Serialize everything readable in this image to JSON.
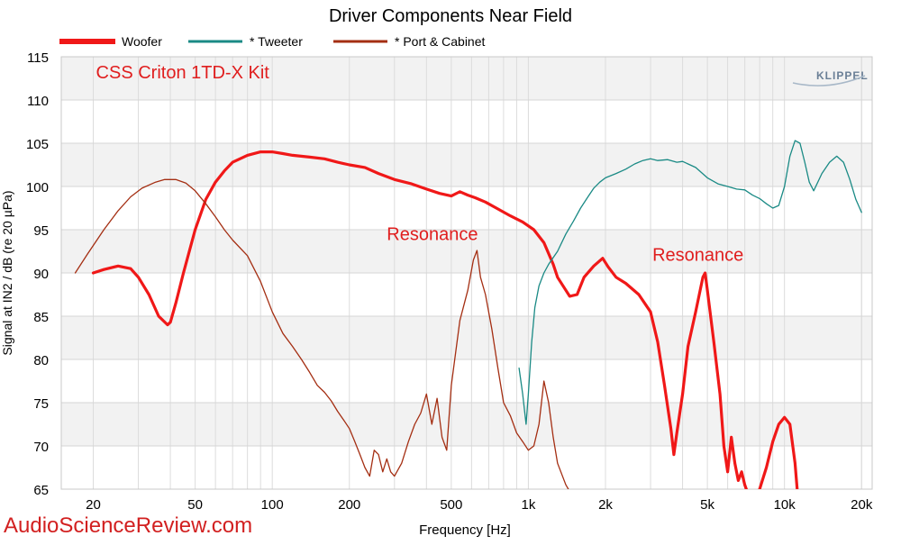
{
  "chart_data": {
    "type": "line",
    "title": "Driver Components Near Field",
    "xlabel": "Frequency [Hz]",
    "ylabel": "Signal at IN2 / dB (re 20 µPa)",
    "x_scale": "log",
    "xlim": [
      15,
      22000
    ],
    "ylim": [
      65,
      115
    ],
    "y_ticks": [
      65,
      70,
      75,
      80,
      85,
      90,
      95,
      100,
      105,
      110,
      115
    ],
    "x_ticks": [
      {
        "value": 20,
        "label": "20"
      },
      {
        "value": 50,
        "label": "50"
      },
      {
        "value": 100,
        "label": "100"
      },
      {
        "value": 200,
        "label": "200"
      },
      {
        "value": 500,
        "label": "500"
      },
      {
        "value": 1000,
        "label": "1k"
      },
      {
        "value": 2000,
        "label": "2k"
      },
      {
        "value": 5000,
        "label": "5k"
      },
      {
        "value": 10000,
        "label": "10k"
      },
      {
        "value": 20000,
        "label": "20k"
      }
    ],
    "grid": true,
    "legend_position": "top-left",
    "annotations": [
      {
        "text": "CSS Criton 1TD-X Kit",
        "x": 20.5,
        "y": 112.5
      },
      {
        "text": "Resonance",
        "x": 280,
        "y": 93.8
      },
      {
        "text": "Resonance",
        "x": 3050,
        "y": 91.4
      }
    ],
    "logo_text": "KLIPPEL",
    "watermark": "AudioScienceReview.com",
    "series": [
      {
        "name": "Woofer",
        "color": "#f01818",
        "x": [
          20,
          22,
          25,
          28,
          30,
          33,
          36,
          39,
          40,
          42,
          45,
          50,
          55,
          60,
          65,
          70,
          80,
          90,
          100,
          110,
          120,
          140,
          160,
          180,
          200,
          230,
          260,
          300,
          350,
          400,
          450,
          500,
          540,
          580,
          620,
          680,
          750,
          850,
          950,
          1050,
          1150,
          1250,
          1300,
          1400,
          1450,
          1550,
          1650,
          1800,
          1950,
          2050,
          2200,
          2400,
          2700,
          3000,
          3200,
          3400,
          3600,
          3700,
          3800,
          4000,
          4200,
          4500,
          4800,
          4900,
          5000,
          5300,
          5600,
          5800,
          6000,
          6200,
          6400,
          6600,
          6800,
          7000,
          7500,
          8000,
          8500,
          9000,
          9500,
          10000,
          10500,
          11000,
          11500
        ],
        "y": [
          90,
          90.4,
          90.8,
          90.5,
          89.5,
          87.5,
          85,
          84,
          84.3,
          86.5,
          90,
          95,
          98.5,
          100.5,
          101.8,
          102.8,
          103.6,
          104,
          104,
          103.8,
          103.6,
          103.4,
          103.2,
          102.8,
          102.5,
          102.2,
          101.5,
          100.8,
          100.3,
          99.7,
          99.2,
          98.9,
          99.4,
          99,
          98.7,
          98.2,
          97.5,
          96.6,
          95.9,
          95,
          93.5,
          91,
          89.5,
          88,
          87.3,
          87.5,
          89.5,
          90.8,
          91.7,
          90.7,
          89.5,
          88.8,
          87.5,
          85.5,
          82,
          77,
          72,
          69,
          71.5,
          76,
          81.5,
          85.5,
          89.5,
          90,
          88,
          82,
          76,
          70,
          67,
          71,
          68,
          66,
          67,
          65.5,
          63,
          65,
          67.5,
          70.5,
          72.5,
          73.3,
          72.5,
          68,
          61
        ]
      },
      {
        "name": "* Tweeter",
        "color": "#1a8a85",
        "x": [
          920,
          950,
          980,
          1000,
          1030,
          1060,
          1100,
          1150,
          1200,
          1300,
          1400,
          1500,
          1600,
          1700,
          1800,
          1900,
          2000,
          2200,
          2400,
          2600,
          2800,
          3000,
          3200,
          3500,
          3800,
          4000,
          4500,
          5000,
          5500,
          6000,
          6500,
          7000,
          7500,
          8000,
          8500,
          9000,
          9500,
          10000,
          10500,
          11000,
          11500,
          12000,
          12500,
          13000,
          14000,
          15000,
          16000,
          17000,
          18000,
          19000,
          20000
        ],
        "y": [
          79,
          76,
          72.5,
          76,
          82,
          86,
          88.5,
          90,
          91,
          92.5,
          94.5,
          96,
          97.5,
          98.7,
          99.8,
          100.5,
          101,
          101.5,
          102,
          102.6,
          103,
          103.2,
          103,
          103.1,
          102.8,
          102.9,
          102.2,
          101,
          100.3,
          100,
          99.7,
          99.6,
          99,
          98.6,
          98,
          97.5,
          97.8,
          100,
          103.5,
          105.3,
          105,
          102.8,
          100.5,
          99.5,
          101.5,
          102.8,
          103.5,
          102.8,
          100.8,
          98.5,
          97
        ]
      },
      {
        "name": "* Port & Cabinet",
        "color": "#a42e12",
        "x": [
          17,
          19,
          22,
          25,
          28,
          31,
          35,
          38,
          42,
          46,
          50,
          55,
          60,
          65,
          70,
          80,
          90,
          100,
          110,
          120,
          130,
          140,
          150,
          160,
          170,
          180,
          190,
          200,
          210,
          220,
          230,
          240,
          250,
          260,
          270,
          280,
          290,
          300,
          320,
          340,
          360,
          380,
          400,
          420,
          440,
          460,
          480,
          500,
          540,
          580,
          610,
          630,
          650,
          680,
          720,
          760,
          800,
          850,
          900,
          950,
          1000,
          1050,
          1100,
          1150,
          1200,
          1250,
          1300,
          1400,
          1500,
          1600
        ],
        "y": [
          90,
          92.2,
          95,
          97.2,
          98.8,
          99.8,
          100.5,
          100.8,
          100.8,
          100.4,
          99.5,
          98,
          96.5,
          95,
          93.8,
          92,
          89,
          85.5,
          83,
          81.5,
          80,
          78.5,
          77,
          76.2,
          75.2,
          74,
          73,
          72,
          70.5,
          69,
          67.5,
          66.5,
          69.5,
          69,
          67,
          68.5,
          67,
          66.5,
          68,
          70.5,
          72.5,
          73.8,
          76,
          72.5,
          75.5,
          71,
          69.5,
          77,
          84.5,
          88,
          91.5,
          92.6,
          89.5,
          87.5,
          83.5,
          79,
          75,
          73.5,
          71.5,
          70.5,
          69.5,
          70,
          72.5,
          77.5,
          75,
          71,
          68,
          65.5,
          64,
          64
        ]
      }
    ]
  }
}
